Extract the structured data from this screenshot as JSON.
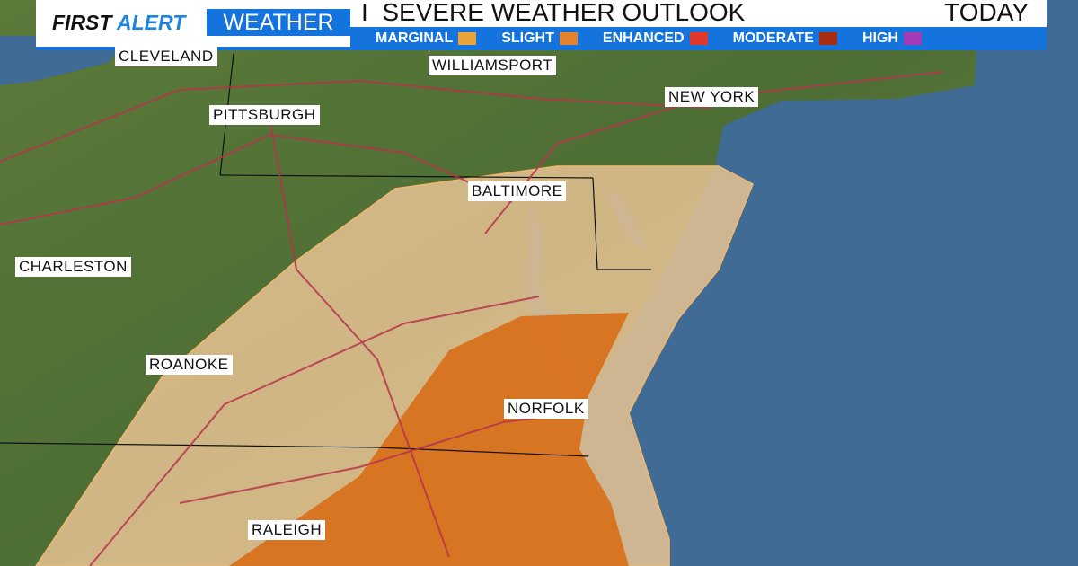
{
  "header": {
    "brand_part1": "FIRST",
    "brand_part2": "ALERT",
    "brand_part3": "WEATHER",
    "separator": "I",
    "title": "SEVERE WEATHER OUTLOOK",
    "period": "TODAY"
  },
  "legend": [
    {
      "label": "MARGINAL",
      "color": "#e8a33a"
    },
    {
      "label": "SLIGHT",
      "color": "#e2822a"
    },
    {
      "label": "ENHANCED",
      "color": "#e0382a"
    },
    {
      "label": "MODERATE",
      "color": "#a82c10"
    },
    {
      "label": "HIGH",
      "color": "#a43ab4"
    }
  ],
  "cities": [
    "CLEVELAND",
    "WILLIAMSPORT",
    "NEW YORK",
    "PITTSBURGH",
    "BALTIMORE",
    "CHARLESTON",
    "ROANOKE",
    "NORFOLK",
    "RALEIGH"
  ],
  "risk_areas": [
    {
      "level": "MARGINAL",
      "fill": "#e8c393"
    },
    {
      "level": "SLIGHT",
      "fill": "#d8711d"
    }
  ]
}
